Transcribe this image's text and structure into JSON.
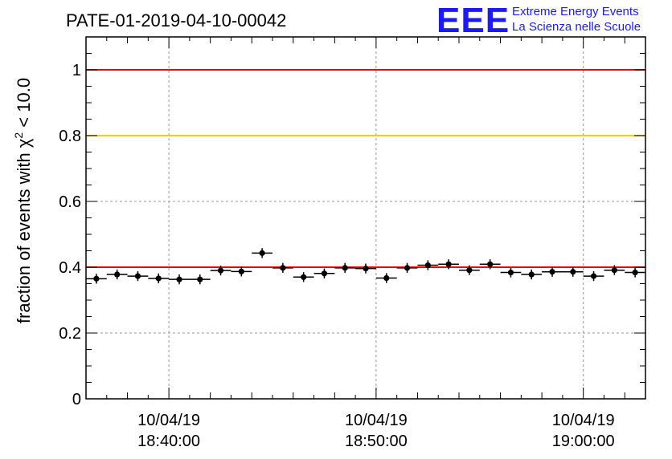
{
  "chart_data": {
    "type": "scatter",
    "title": "PATE-01-2019-04-10-00042",
    "ylabel_prefix": "fraction of events with χ",
    "ylabel_sup": "2",
    "ylabel_suffix": " < 10.0",
    "xlabel": "",
    "ylim": [
      0,
      1.1
    ],
    "yticks": [
      "0",
      "0.2",
      "0.4",
      "0.6",
      "0.8",
      "1"
    ],
    "ytick_values": [
      0,
      0.2,
      0.4,
      0.6,
      0.8,
      1.0
    ],
    "xticks": [
      {
        "minute": 10,
        "date": "10/04/19",
        "time": "18:40:00"
      },
      {
        "minute": 20,
        "date": "10/04/19",
        "time": "18:50:00"
      },
      {
        "minute": 30,
        "date": "10/04/19",
        "time": "19:00:00"
      }
    ],
    "xlim_minutes": [
      6,
      33
    ],
    "bin_width_minutes": 1,
    "grid": true,
    "reference_lines": [
      {
        "y": 1.0,
        "color": "#ff0000"
      },
      {
        "y": 0.8,
        "color": "#ffcc00"
      },
      {
        "y": 0.4,
        "color": "#ff0000"
      }
    ],
    "series": [
      {
        "x_minutes": [
          6.5,
          7.5,
          8.5,
          9.5,
          10.5,
          11.5,
          12.5,
          13.5,
          14.5,
          15.5,
          16.5,
          17.5,
          18.5,
          19.5,
          20.5,
          21.5,
          22.5,
          23.5,
          24.5,
          25.5,
          26.5,
          27.5,
          28.5,
          29.5,
          30.5,
          31.5,
          32.5
        ],
        "y": [
          0.365,
          0.378,
          0.373,
          0.366,
          0.363,
          0.363,
          0.39,
          0.387,
          0.443,
          0.398,
          0.37,
          0.381,
          0.398,
          0.396,
          0.367,
          0.398,
          0.406,
          0.409,
          0.391,
          0.409,
          0.384,
          0.378,
          0.386,
          0.386,
          0.373,
          0.391,
          0.384
        ],
        "yerr": 0.015,
        "color": "#000000"
      }
    ]
  },
  "logo": {
    "mark": "EEE",
    "line1": "Extreme Energy Events",
    "line2": "La Scienza nelle Scuole"
  }
}
